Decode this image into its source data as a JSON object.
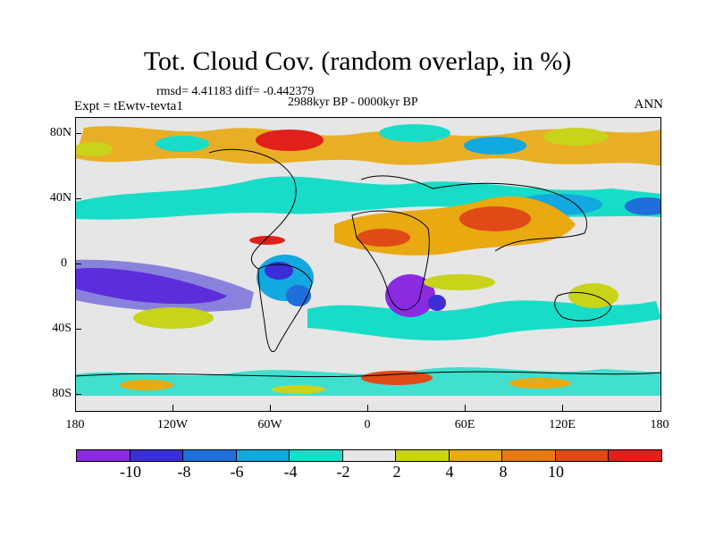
{
  "title": "Tot. Cloud Cov. (random overlap, in %)",
  "stats": "rmsd= 4.41183 diff= -0.442379",
  "period": "2988kyr BP - 0000kyr BP",
  "experiment": "Expt = tEwtv-tevta1",
  "season": "ANN",
  "y_axis_labels": [
    "80N",
    "40N",
    "0",
    "40S",
    "80S"
  ],
  "x_axis_labels": [
    "180",
    "120W",
    "60W",
    "0",
    "60E",
    "120E",
    "180"
  ],
  "colorbar": {
    "labels": [
      "-10",
      "-8",
      "-6",
      "-4",
      "-2",
      "2",
      "4",
      "8",
      "10"
    ],
    "colors": [
      "#8a2be2",
      "#3a2fd6",
      "#1e6fd9",
      "#12a8e0",
      "#17ddc8",
      "#e6e6e6",
      "#c8d31a",
      "#e8a911",
      "#e87a16",
      "#df4a17",
      "#e0201a"
    ]
  }
}
